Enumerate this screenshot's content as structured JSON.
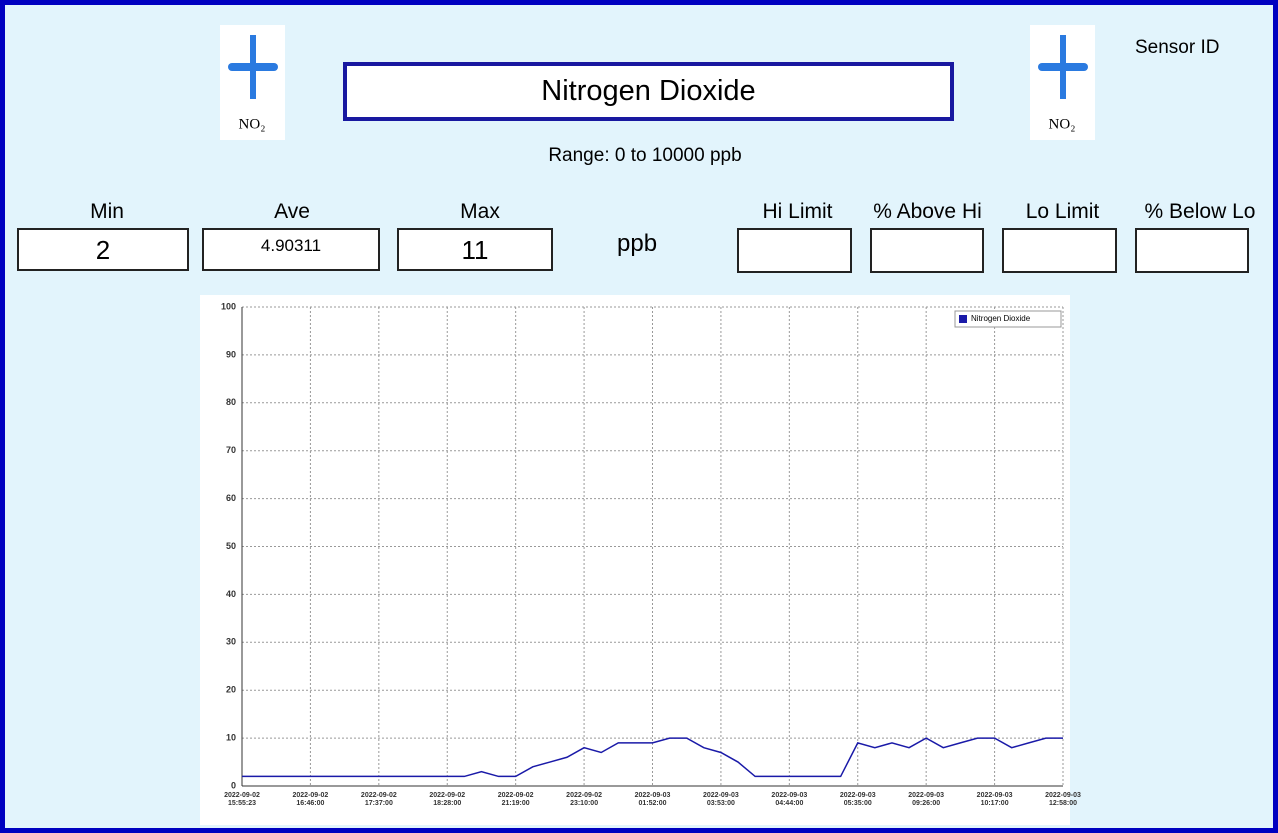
{
  "header": {
    "title": "Nitrogen Dioxide",
    "sensor_label": "Sensor ID",
    "range": "Range: 0 to 10000 ppb",
    "icon_text": "NO₂"
  },
  "stats": {
    "min_label": "Min",
    "ave_label": "Ave",
    "max_label": "Max",
    "min": 2,
    "ave": 4.90311,
    "max": 11,
    "unit": "ppb",
    "hi_limit_label": "Hi Limit",
    "above_hi_label": "% Above Hi",
    "lo_limit_label": "Lo Limit",
    "below_lo_label": "% Below Lo"
  },
  "chart_data": {
    "type": "line",
    "categories": [
      "2022-09-02 15:55:23",
      null,
      null,
      null,
      "2022-09-02 16:46:00",
      null,
      null,
      null,
      "2022-09-02 17:37:00",
      null,
      null,
      null,
      "2022-09-02 18:28:00",
      null,
      null,
      null,
      "2022-09-02 21:19:00",
      null,
      null,
      null,
      "2022-09-02 23:10:00",
      null,
      null,
      null,
      "2022-09-03 01:52:00",
      null,
      null,
      null,
      "2022-09-03 03:53:00",
      null,
      null,
      null,
      "2022-09-03 04:44:00",
      null,
      null,
      null,
      "2022-09-03 05:35:00",
      null,
      null,
      null,
      "2022-09-03 09:26:00",
      null,
      null,
      null,
      "2022-09-03 10:17:00",
      null,
      null,
      null,
      "2022-09-03 12:58:00"
    ],
    "series": [
      {
        "name": "Nitrogen Dioxide",
        "color": "#1a1aa8",
        "values": [
          2,
          2,
          2,
          2,
          2,
          2,
          2,
          2,
          2,
          2,
          2,
          2,
          2,
          2,
          3,
          2,
          2,
          4,
          5,
          6,
          8,
          7,
          9,
          9,
          9,
          10,
          10,
          8,
          7,
          5,
          2,
          2,
          2,
          2,
          2,
          2,
          9,
          8,
          9,
          8,
          10,
          8,
          9,
          10,
          10,
          8,
          9,
          10,
          10
        ]
      }
    ],
    "ylim": [
      0,
      100
    ],
    "yticks": [
      0,
      10,
      20,
      30,
      40,
      50,
      60,
      70,
      80,
      90,
      100
    ],
    "grid": true,
    "legend": "upper right"
  }
}
